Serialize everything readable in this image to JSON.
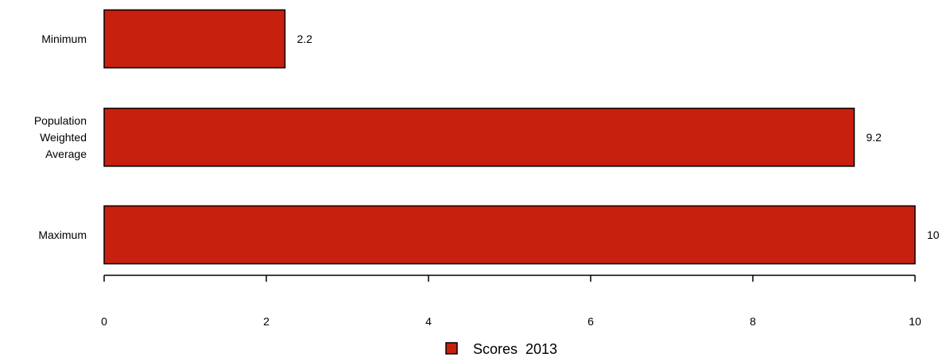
{
  "chart_data": {
    "type": "bar",
    "orientation": "horizontal",
    "categories": [
      "Minimum",
      "Population Weighted Average",
      "Maximum"
    ],
    "category_label_lines": [
      [
        "Minimum"
      ],
      [
        "Population",
        "Weighted",
        "Average"
      ],
      [
        "Maximum"
      ]
    ],
    "series": [
      {
        "name": "Scores  2013",
        "values": [
          2.23,
          9.25,
          10.0
        ]
      }
    ],
    "data_labels": [
      "2.2",
      "9.2",
      "10"
    ],
    "x_ticks": [
      "0",
      "2",
      "4",
      "6",
      "8",
      "10"
    ],
    "xlim": [
      0,
      10
    ],
    "title": "",
    "xlabel": "",
    "ylabel": "",
    "grid": false,
    "legend": {
      "position": "bottom-center",
      "label": "Scores  2013"
    },
    "colors": {
      "bar_fill": "#c8200e",
      "bar_stroke": "#000000",
      "axis": "#000000"
    }
  }
}
